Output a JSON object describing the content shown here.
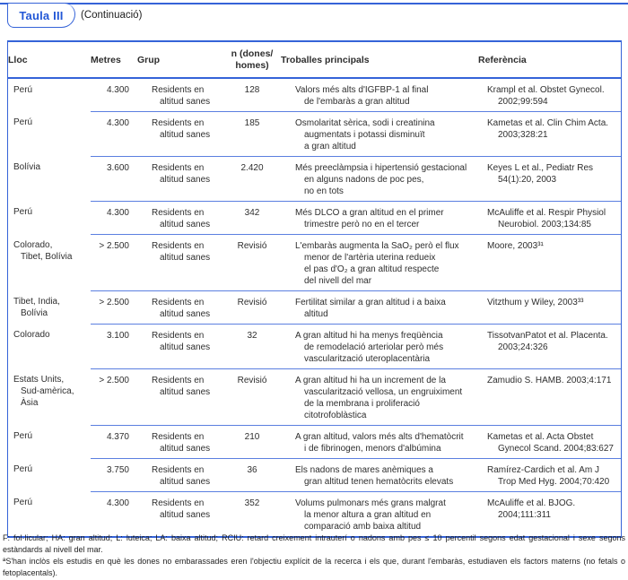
{
  "colors": {
    "accent_blue": "#3563d8",
    "separator_blue": "#5b7fe0",
    "title_blue": "#2257d6"
  },
  "header": {
    "title": "Taula III",
    "continuation": "(Continuació)"
  },
  "table": {
    "column_keys": [
      "lloc",
      "metres",
      "grup",
      "n",
      "troballes",
      "referencia"
    ],
    "columns": [
      [
        "Lloc"
      ],
      [
        "Metres"
      ],
      [
        "Grup"
      ],
      [
        "n (dones/",
        "homes)"
      ],
      [
        "Troballes principals"
      ],
      [
        "Referència"
      ]
    ],
    "rows": [
      {
        "lloc": [
          "Perú"
        ],
        "metres": "4.300",
        "grup": [
          "Residents en",
          "altitud sanes"
        ],
        "n": "128",
        "troballes": [
          "Valors més alts d'IGFBP-1 al final",
          "de l'embaràs a gran altitud"
        ],
        "referencia": [
          "Krampl et al. Obstet Gynecol.",
          "2002;99:594"
        ]
      },
      {
        "lloc": [
          "Perú"
        ],
        "metres": "4.300",
        "grup": [
          "Residents en",
          "altitud sanes"
        ],
        "n": "185",
        "troballes": [
          "Osmolaritat sèrica, sodi i creatinina",
          "augmentats i potassi disminuït",
          "a gran altitud"
        ],
        "referencia": [
          "Kametas et al. Clin Chim Acta.",
          "2003;328:21"
        ]
      },
      {
        "lloc": [
          "Bolívia"
        ],
        "metres": "3.600",
        "grup": [
          "Residents en",
          "altitud sanes"
        ],
        "n": "2.420",
        "troballes": [
          "Més preeclàmpsia i hipertensió gestacional",
          "en alguns nadons de poc pes,",
          "no en tots"
        ],
        "referencia": [
          "Keyes L et al., Pediatr Res",
          "54(1):20, 2003"
        ]
      },
      {
        "lloc": [
          "Perú"
        ],
        "metres": "4.300",
        "grup": [
          "Residents en",
          "altitud sanes"
        ],
        "n": "342",
        "troballes": [
          "Més DLCO a gran altitud en el primer",
          "trimestre però no en el tercer"
        ],
        "referencia": [
          "McAuliffe et al. Respir Physiol",
          "Neurobiol. 2003;134:85"
        ]
      },
      {
        "lloc": [
          "Colorado,",
          "Tibet, Bolívia"
        ],
        "metres": "> 2.500",
        "grup": [
          "Residents en",
          "altitud sanes"
        ],
        "n": "Revisió",
        "troballes": [
          "L'embaràs augmenta la SaO₂ però el flux",
          "menor de l'artèria uterina redueix",
          "el pas d'O₂ a gran altitud respecte",
          "del nivell del mar"
        ],
        "referencia": [
          "Moore, 2003³¹"
        ]
      },
      {
        "lloc": [
          "Tibet, India,",
          "Bolívia"
        ],
        "metres": "> 2.500",
        "grup": [
          "Residents en",
          "altitud sanes"
        ],
        "n": "Revisió",
        "troballes": [
          "Fertilitat similar a gran altitud i a baixa",
          "altitud"
        ],
        "referencia": [
          "Vitzthum y Wiley, 2003³³"
        ]
      },
      {
        "lloc": [
          "Colorado"
        ],
        "metres": "3.100",
        "grup": [
          "Residents en",
          "altitud sanes"
        ],
        "n": "32",
        "troballes": [
          "A gran altitud hi ha menys freqüència",
          "de remodelació arteriolar però més",
          "vascularització uteroplacentària"
        ],
        "referencia": [
          "TissotvanPatot et al. Placenta.",
          "2003;24:326"
        ]
      },
      {
        "lloc": [
          "Estats Units,",
          "Sud-amèrica,",
          "Àsia"
        ],
        "metres": "> 2.500",
        "grup": [
          "Residents en",
          "altitud sanes"
        ],
        "n": "Revisió",
        "troballes": [
          "A gran altitud hi ha un increment de la",
          "vascularització vellosa, un engruiximent",
          "de la membrana i proliferació",
          "citotrofoblàstica"
        ],
        "referencia": [
          "Zamudio S. HAMB. 2003;4:171"
        ]
      },
      {
        "lloc": [
          "Perú"
        ],
        "metres": "4.370",
        "grup": [
          "Residents en",
          "altitud sanes"
        ],
        "n": "210",
        "troballes": [
          "A gran altitud, valors més alts d'hematòcrit",
          "i de fibrinogen, menors d'albúmina"
        ],
        "referencia": [
          "Kametas et al. Acta Obstet",
          "Gynecol Scand. 2004;83:627"
        ]
      },
      {
        "lloc": [
          "Perú"
        ],
        "metres": "3.750",
        "grup": [
          "Residents en",
          "altitud sanes"
        ],
        "n": "36",
        "troballes": [
          "Els nadons de mares anèmiques a",
          "gran altitud tenen hematòcrits elevats"
        ],
        "referencia": [
          "Ramírez-Cardich et al. Am J",
          "Trop Med Hyg. 2004;70:420"
        ]
      },
      {
        "lloc": [
          "Perú"
        ],
        "metres": "4.300",
        "grup": [
          "Residents en",
          "altitud sanes"
        ],
        "n": "352",
        "troballes": [
          "Volums pulmonars més grans malgrat",
          "la menor altura a gran altitud en",
          "comparació amb baixa altitud"
        ],
        "referencia": [
          "McAuliffe et al. BJOG.",
          "2004;111:311"
        ]
      }
    ]
  },
  "footnotes": [
    "F: fol·licular; HA: gran altitud; L: luteica; LA: baixa altitud; RCIU: retard creixement intrauterí o nadons amb pes ≤ 10 percentil segons edat gestacional i sexe segons estàndards al nivell del mar.",
    "ªS'han inclòs els estudis en què les dones no embarassades eren l'objectiu explícit de la recerca i els que, durant l'embaràs, estudiaven els factors materns (no fetals o fetoplacentals)."
  ]
}
